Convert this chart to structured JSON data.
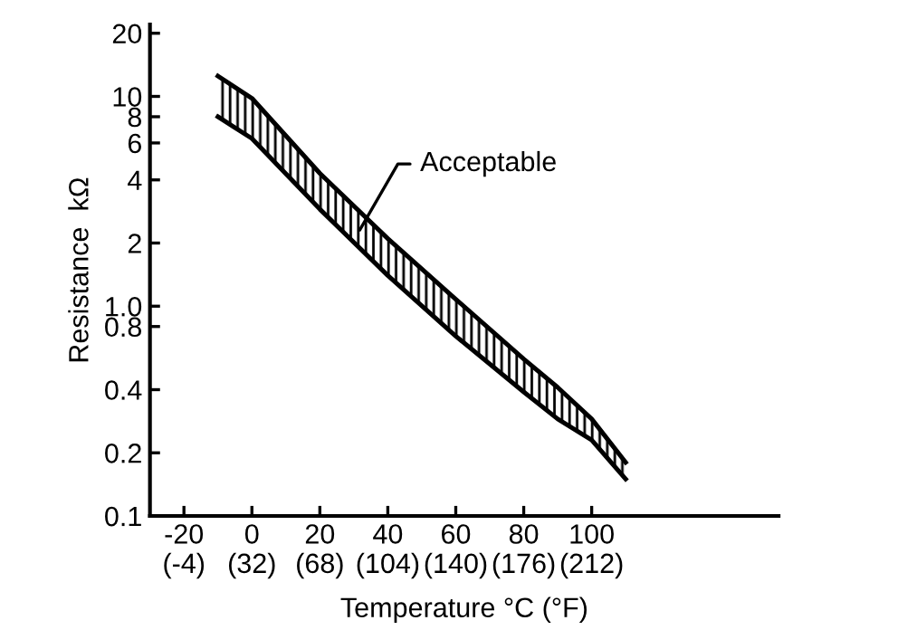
{
  "chart_data": {
    "type": "line",
    "xlabel": "Temperature °C (°F)",
    "ylabel": "Resistance  kΩ",
    "x": [
      -10,
      0,
      20,
      40,
      60,
      80,
      90,
      100,
      110
    ],
    "series": [
      {
        "color": "#000000",
        "values": [
          12.5,
          9.8,
          4.3,
          2.1,
          1.08,
          0.56,
          0.41,
          0.29,
          0.18
        ],
        "upper": [
          12.5,
          9.8,
          4.3,
          2.1,
          1.08,
          0.56,
          0.41,
          0.29,
          0.18
        ],
        "lower": [
          8.0,
          6.3,
          2.9,
          1.4,
          0.72,
          0.39,
          0.29,
          0.23,
          0.15
        ]
      },
      {
        "color": "#000000",
        "values": [
          8.0,
          6.3,
          2.9,
          1.4,
          0.72,
          0.39,
          0.29,
          0.23,
          0.15
        ]
      }
    ],
    "annotations": [
      {
        "text": "Acceptable",
        "x": 31,
        "y": 2.2
      }
    ],
    "log": "y",
    "xlim": [
      -30,
      155
    ],
    "ylim": [
      0.1,
      22
    ],
    "xticks": [
      -20,
      0,
      20,
      40,
      60,
      80,
      100
    ],
    "x2lim": [
      -22,
      311
    ],
    "x2ticks": [
      {
        "value": -4,
        "label": "(-4)"
      },
      {
        "value": 32,
        "label": "(32)"
      },
      {
        "value": 68,
        "label": "(68)"
      },
      {
        "value": 104,
        "label": "(104)"
      },
      {
        "value": 140,
        "label": "(140)"
      },
      {
        "value": 176,
        "label": "(176)"
      },
      {
        "value": 212,
        "label": "(212)"
      }
    ],
    "yticks": [
      0.1,
      0.2,
      0.4,
      0.8,
      {
        "value": 1,
        "label": "1.0"
      },
      2,
      4,
      6,
      8,
      10,
      20
    ],
    "grid": false,
    "legend": false,
    "marker": "none",
    "line_style": "solid"
  }
}
